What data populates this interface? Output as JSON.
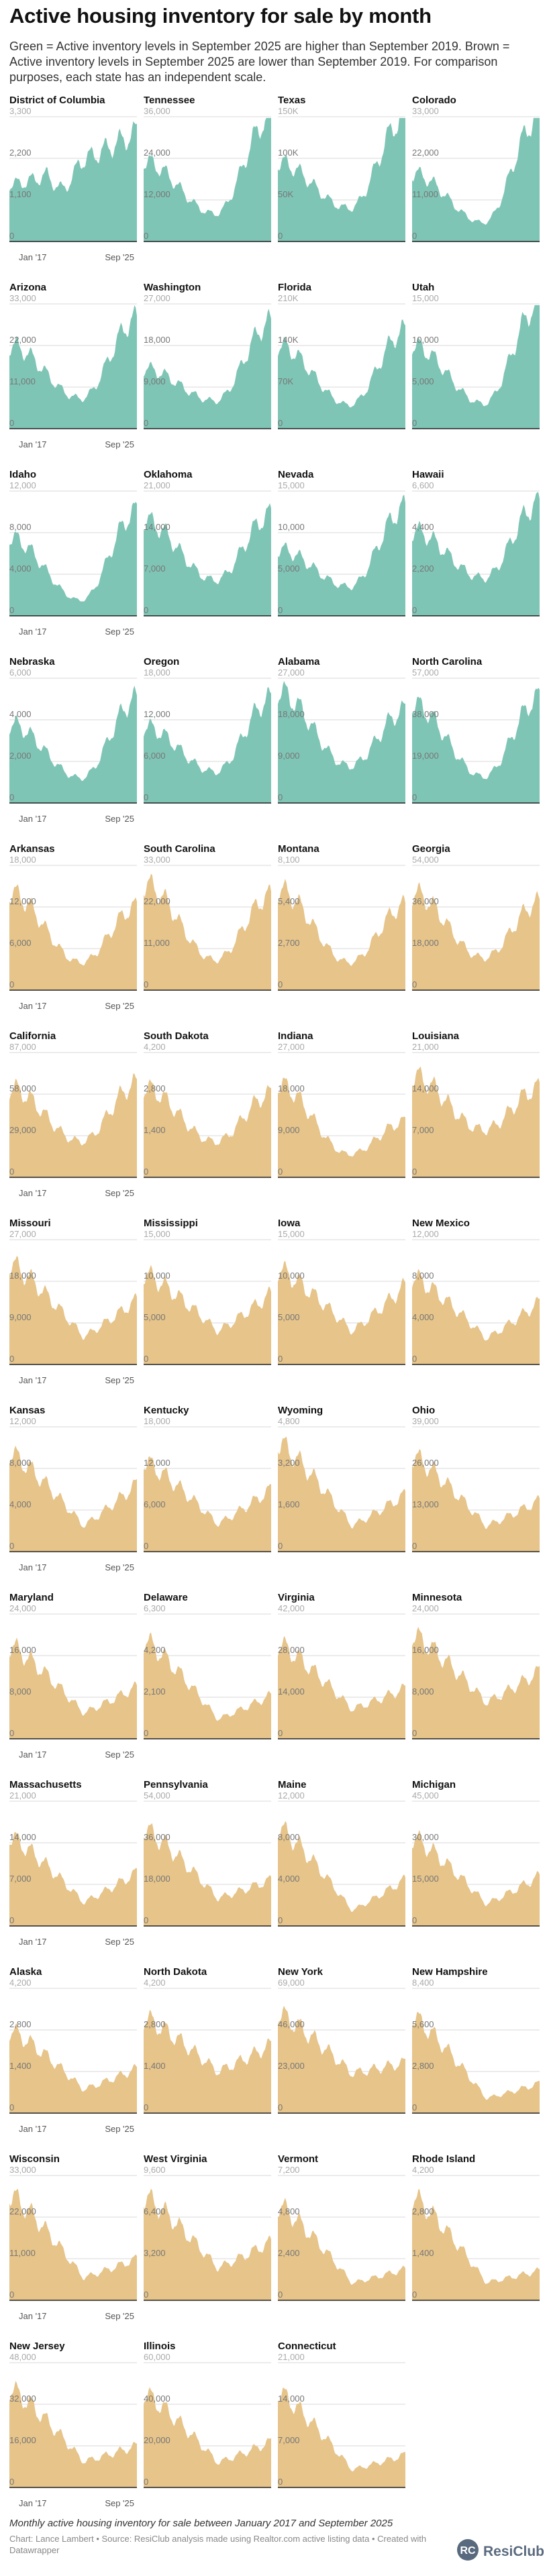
{
  "header": {
    "title": "Active housing inventory for sale by month",
    "description": "Green = Active inventory levels in September 2025 are higher than September 2019. Brown = Active inventory levels in September 2025 are lower than September 2019. For comparison purposes, each state has an independent scale."
  },
  "footer": {
    "note": "Monthly active housing inventory for sale between January 2017 and September 2025",
    "credit": "Chart: Lance Lambert • Source: ResiClub analysis made using Realtor.com active listing data • Created with Datawrapper",
    "brand": "ResiClub"
  },
  "colors": {
    "higher": "#7fc5b6",
    "lower": "#e6c48a",
    "grid": "#d9d9d9",
    "baseline": "#222222"
  },
  "chart_data": {
    "type": "area",
    "period": [
      "Jan 2017",
      "Sep 2025"
    ],
    "x_tick_labels": [
      "Jan '17",
      "Sep '25"
    ],
    "value_labels": [
      "higher",
      "lower"
    ],
    "panels": [
      {
        "state": "District of Columbia",
        "status": "higher",
        "y_ticks": [
          "3,300",
          "2,200",
          "1,100",
          "0"
        ],
        "ymax": 3300,
        "start": 1500,
        "min": 1000,
        "end": 2900,
        "shape": "rising",
        "show_x": true
      },
      {
        "state": "Tennessee",
        "status": "higher",
        "y_ticks": [
          "36,000",
          "24,000",
          "12,000",
          "0"
        ],
        "ymax": 36000,
        "start": 23000,
        "min": 8000,
        "end": 36000,
        "shape": "u",
        "show_x": false
      },
      {
        "state": "Texas",
        "status": "higher",
        "y_ticks": [
          "150K",
          "100K",
          "50K",
          "0"
        ],
        "ymax": 150000,
        "start": 95000,
        "min": 40000,
        "end": 150000,
        "shape": "u",
        "show_x": false
      },
      {
        "state": "Colorado",
        "status": "higher",
        "y_ticks": [
          "33,000",
          "22,000",
          "11,000",
          "0"
        ],
        "ymax": 33000,
        "start": 18000,
        "min": 5000,
        "end": 33000,
        "shape": "u",
        "show_x": false
      },
      {
        "state": "Arizona",
        "status": "higher",
        "y_ticks": [
          "33,000",
          "22,000",
          "11,000",
          "0"
        ],
        "ymax": 33000,
        "start": 22000,
        "min": 8000,
        "end": 29000,
        "shape": "u",
        "show_x": true
      },
      {
        "state": "Washington",
        "status": "higher",
        "y_ticks": [
          "27,000",
          "18,000",
          "9,000",
          "0"
        ],
        "ymax": 27000,
        "start": 13000,
        "min": 6000,
        "end": 23000,
        "shape": "u",
        "show_x": false
      },
      {
        "state": "Florida",
        "status": "higher",
        "y_ticks": [
          "210K",
          "140K",
          "70K",
          "0"
        ],
        "ymax": 210000,
        "start": 140000,
        "min": 40000,
        "end": 165000,
        "shape": "u",
        "show_x": false
      },
      {
        "state": "Utah",
        "status": "higher",
        "y_ticks": [
          "15,000",
          "10,000",
          "5,000",
          "0"
        ],
        "ymax": 15000,
        "start": 10000,
        "min": 3000,
        "end": 15000,
        "shape": "u",
        "show_x": false
      },
      {
        "state": "Idaho",
        "status": "higher",
        "y_ticks": [
          "12,000",
          "8,000",
          "4,000",
          "0"
        ],
        "ymax": 12000,
        "start": 7500,
        "min": 1500,
        "end": 10000,
        "shape": "u",
        "show_x": true
      },
      {
        "state": "Oklahoma",
        "status": "higher",
        "y_ticks": [
          "21,000",
          "14,000",
          "7,000",
          "0"
        ],
        "ymax": 21000,
        "start": 16000,
        "min": 6000,
        "end": 17000,
        "shape": "u",
        "show_x": false
      },
      {
        "state": "Nevada",
        "status": "higher",
        "y_ticks": [
          "15,000",
          "10,000",
          "5,000",
          "0"
        ],
        "ymax": 15000,
        "start": 8000,
        "min": 3500,
        "end": 13000,
        "shape": "u",
        "show_x": false
      },
      {
        "state": "Hawaii",
        "status": "higher",
        "y_ticks": [
          "6,600",
          "4,400",
          "2,200",
          "0"
        ],
        "ymax": 6600,
        "start": 4500,
        "min": 2000,
        "end": 6000,
        "shape": "u",
        "show_x": false
      },
      {
        "state": "Nebraska",
        "status": "higher",
        "y_ticks": [
          "6,000",
          "4,000",
          "2,000",
          "0"
        ],
        "ymax": 6000,
        "start": 3800,
        "min": 1200,
        "end": 5000,
        "shape": "u",
        "show_x": true
      },
      {
        "state": "Oregon",
        "status": "higher",
        "y_ticks": [
          "18,000",
          "12,000",
          "6,000",
          "0"
        ],
        "ymax": 18000,
        "start": 11000,
        "min": 4500,
        "end": 15000,
        "shape": "u",
        "show_x": false
      },
      {
        "state": "Alabama",
        "status": "higher",
        "y_ticks": [
          "27,000",
          "18,000",
          "9,000",
          "0"
        ],
        "ymax": 27000,
        "start": 24000,
        "min": 8000,
        "end": 20000,
        "shape": "u",
        "show_x": false
      },
      {
        "state": "North Carolina",
        "status": "higher",
        "y_ticks": [
          "57,000",
          "38,000",
          "19,000",
          "0"
        ],
        "ymax": 57000,
        "start": 45000,
        "min": 12000,
        "end": 48000,
        "shape": "u",
        "show_x": false
      },
      {
        "state": "Arkansas",
        "status": "lower",
        "y_ticks": [
          "18,000",
          "12,000",
          "6,000",
          "0"
        ],
        "ymax": 18000,
        "start": 14000,
        "min": 4000,
        "end": 12000,
        "shape": "u",
        "show_x": true
      },
      {
        "state": "South Carolina",
        "status": "lower",
        "y_ticks": [
          "33,000",
          "22,000",
          "11,000",
          "0"
        ],
        "ymax": 33000,
        "start": 28000,
        "min": 8000,
        "end": 25000,
        "shape": "u",
        "show_x": false
      },
      {
        "state": "Montana",
        "status": "lower",
        "y_ticks": [
          "8,100",
          "5,400",
          "2,700",
          "0"
        ],
        "ymax": 8100,
        "start": 6500,
        "min": 1800,
        "end": 5500,
        "shape": "u",
        "show_x": false
      },
      {
        "state": "Georgia",
        "status": "lower",
        "y_ticks": [
          "54,000",
          "36,000",
          "18,000",
          "0"
        ],
        "ymax": 54000,
        "start": 42000,
        "min": 14000,
        "end": 38000,
        "shape": "u",
        "show_x": false
      },
      {
        "state": "California",
        "status": "lower",
        "y_ticks": [
          "87,000",
          "58,000",
          "29,000",
          "0"
        ],
        "ymax": 87000,
        "start": 62000,
        "min": 25000,
        "end": 65000,
        "shape": "u",
        "show_x": true
      },
      {
        "state": "South Dakota",
        "status": "lower",
        "y_ticks": [
          "4,200",
          "2,800",
          "1,400",
          "0"
        ],
        "ymax": 4200,
        "start": 3000,
        "min": 1200,
        "end": 2800,
        "shape": "u",
        "show_x": false
      },
      {
        "state": "Indiana",
        "status": "lower",
        "y_ticks": [
          "27,000",
          "18,000",
          "9,000",
          "0"
        ],
        "ymax": 27000,
        "start": 20000,
        "min": 5000,
        "end": 12000,
        "shape": "u",
        "show_x": false
      },
      {
        "state": "Louisiana",
        "status": "lower",
        "y_ticks": [
          "21,000",
          "14,000",
          "7,000",
          "0"
        ],
        "ymax": 21000,
        "start": 17000,
        "min": 8000,
        "end": 15000,
        "shape": "u",
        "show_x": false
      },
      {
        "state": "Missouri",
        "status": "lower",
        "y_ticks": [
          "27,000",
          "18,000",
          "9,000",
          "0"
        ],
        "ymax": 27000,
        "start": 22000,
        "min": 6000,
        "end": 14000,
        "shape": "decline",
        "show_x": true
      },
      {
        "state": "Mississippi",
        "status": "lower",
        "y_ticks": [
          "15,000",
          "10,000",
          "5,000",
          "0"
        ],
        "ymax": 15000,
        "start": 11000,
        "min": 4000,
        "end": 8500,
        "shape": "decline",
        "show_x": false
      },
      {
        "state": "Iowa",
        "status": "lower",
        "y_ticks": [
          "15,000",
          "10,000",
          "5,000",
          "0"
        ],
        "ymax": 15000,
        "start": 11500,
        "min": 4000,
        "end": 9500,
        "shape": "decline",
        "show_x": false
      },
      {
        "state": "New Mexico",
        "status": "lower",
        "y_ticks": [
          "12,000",
          "8,000",
          "4,000",
          "0"
        ],
        "ymax": 12000,
        "start": 8500,
        "min": 2500,
        "end": 6000,
        "shape": "decline",
        "show_x": false
      },
      {
        "state": "Kansas",
        "status": "lower",
        "y_ticks": [
          "12,000",
          "8,000",
          "4,000",
          "0"
        ],
        "ymax": 12000,
        "start": 9500,
        "min": 2500,
        "end": 6500,
        "shape": "decline",
        "show_x": true
      },
      {
        "state": "Kentucky",
        "status": "lower",
        "y_ticks": [
          "18,000",
          "12,000",
          "6,000",
          "0"
        ],
        "ymax": 18000,
        "start": 13000,
        "min": 4000,
        "end": 9000,
        "shape": "decline",
        "show_x": false
      },
      {
        "state": "Wyoming",
        "status": "lower",
        "y_ticks": [
          "4,800",
          "3,200",
          "1,600",
          "0"
        ],
        "ymax": 4800,
        "start": 4200,
        "min": 1000,
        "end": 2200,
        "shape": "decline",
        "show_x": false
      },
      {
        "state": "Ohio",
        "status": "lower",
        "y_ticks": [
          "39,000",
          "26,000",
          "13,000",
          "0"
        ],
        "ymax": 39000,
        "start": 30000,
        "min": 8000,
        "end": 16000,
        "shape": "decline",
        "show_x": false
      },
      {
        "state": "Maryland",
        "status": "lower",
        "y_ticks": [
          "24,000",
          "16,000",
          "8,000",
          "0"
        ],
        "ymax": 24000,
        "start": 18000,
        "min": 5000,
        "end": 10000,
        "shape": "decline",
        "show_x": true
      },
      {
        "state": "Delaware",
        "status": "lower",
        "y_ticks": [
          "6,300",
          "4,200",
          "2,100",
          "0"
        ],
        "ymax": 6300,
        "start": 5000,
        "min": 1000,
        "end": 2200,
        "shape": "decline",
        "show_x": false
      },
      {
        "state": "Virginia",
        "status": "lower",
        "y_ticks": [
          "42,000",
          "28,000",
          "14,000",
          "0"
        ],
        "ymax": 42000,
        "start": 32000,
        "min": 10000,
        "end": 17000,
        "shape": "decline",
        "show_x": false
      },
      {
        "state": "Minnesota",
        "status": "lower",
        "y_ticks": [
          "24,000",
          "16,000",
          "8,000",
          "0"
        ],
        "ymax": 24000,
        "start": 20000,
        "min": 7000,
        "end": 13000,
        "shape": "decline",
        "show_x": false
      },
      {
        "state": "Massachusetts",
        "status": "lower",
        "y_ticks": [
          "21,000",
          "14,000",
          "7,000",
          "0"
        ],
        "ymax": 21000,
        "start": 15000,
        "min": 4000,
        "end": 9000,
        "shape": "decline",
        "show_x": true
      },
      {
        "state": "Pennsylvania",
        "status": "lower",
        "y_ticks": [
          "54,000",
          "36,000",
          "18,000",
          "0"
        ],
        "ymax": 54000,
        "start": 42000,
        "min": 12000,
        "end": 20000,
        "shape": "decline",
        "show_x": false
      },
      {
        "state": "Maine",
        "status": "lower",
        "y_ticks": [
          "12,000",
          "8,000",
          "4,000",
          "0"
        ],
        "ymax": 12000,
        "start": 9500,
        "min": 1500,
        "end": 4500,
        "shape": "decline",
        "show_x": false
      },
      {
        "state": "Michigan",
        "status": "lower",
        "y_ticks": [
          "45,000",
          "30,000",
          "15,000",
          "0"
        ],
        "ymax": 45000,
        "start": 32000,
        "min": 8000,
        "end": 18000,
        "shape": "decline",
        "show_x": false
      },
      {
        "state": "Alaska",
        "status": "lower",
        "y_ticks": [
          "4,200",
          "2,800",
          "1,400",
          "0"
        ],
        "ymax": 4200,
        "start": 2800,
        "min": 800,
        "end": 1500,
        "shape": "decline",
        "show_x": true
      },
      {
        "state": "North Dakota",
        "status": "lower",
        "y_ticks": [
          "4,200",
          "2,800",
          "1,400",
          "0"
        ],
        "ymax": 4200,
        "start": 3200,
        "min": 1400,
        "end": 2300,
        "shape": "decline",
        "show_x": false
      },
      {
        "state": "New York",
        "status": "lower",
        "y_ticks": [
          "69,000",
          "46,000",
          "23,000",
          "0"
        ],
        "ymax": 69000,
        "start": 55000,
        "min": 22000,
        "end": 28000,
        "shape": "decline",
        "show_x": false
      },
      {
        "state": "New Hampshire",
        "status": "lower",
        "y_ticks": [
          "8,400",
          "5,600",
          "2,800",
          "0"
        ],
        "ymax": 8400,
        "start": 6500,
        "min": 1000,
        "end": 2000,
        "shape": "decline",
        "show_x": false
      },
      {
        "state": "Wisconsin",
        "status": "lower",
        "y_ticks": [
          "33,000",
          "22,000",
          "11,000",
          "0"
        ],
        "ymax": 33000,
        "start": 28000,
        "min": 6000,
        "end": 11000,
        "shape": "decline",
        "show_x": true
      },
      {
        "state": "West Virginia",
        "status": "lower",
        "y_ticks": [
          "9,600",
          "6,400",
          "3,200",
          "0"
        ],
        "ymax": 9600,
        "start": 8000,
        "min": 2500,
        "end": 4500,
        "shape": "decline",
        "show_x": false
      },
      {
        "state": "Vermont",
        "status": "lower",
        "y_ticks": [
          "7,200",
          "4,800",
          "2,400",
          "0"
        ],
        "ymax": 7200,
        "start": 5500,
        "min": 1000,
        "end": 1800,
        "shape": "decline",
        "show_x": false
      },
      {
        "state": "Rhode Island",
        "status": "lower",
        "y_ticks": [
          "4,200",
          "2,800",
          "1,400",
          "0"
        ],
        "ymax": 4200,
        "start": 3500,
        "min": 600,
        "end": 1000,
        "shape": "decline",
        "show_x": false
      },
      {
        "state": "New Jersey",
        "status": "lower",
        "y_ticks": [
          "48,000",
          "32,000",
          "16,000",
          "0"
        ],
        "ymax": 48000,
        "start": 38000,
        "min": 10000,
        "end": 16000,
        "shape": "decline",
        "show_x": true
      },
      {
        "state": "Illinois",
        "status": "lower",
        "y_ticks": [
          "60,000",
          "40,000",
          "20,000",
          "0"
        ],
        "ymax": 60000,
        "start": 45000,
        "min": 12000,
        "end": 22000,
        "shape": "decline",
        "show_x": false
      },
      {
        "state": "Connecticut",
        "status": "lower",
        "y_ticks": [
          "21,000",
          "14,000",
          "7,000",
          "0"
        ],
        "ymax": 21000,
        "start": 16000,
        "min": 3000,
        "end": 5500,
        "shape": "decline",
        "show_x": false
      }
    ]
  }
}
